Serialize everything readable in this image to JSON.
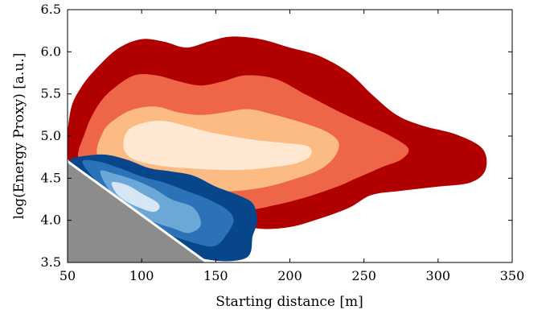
{
  "chart_data": {
    "type": "contour",
    "xlabel": "Starting distance [m]",
    "ylabel": "log(Energy Proxy) [a.u.]",
    "xlim": [
      50,
      350
    ],
    "ylim": [
      3.5,
      6.5
    ],
    "xticks": [
      "50",
      "100",
      "150",
      "200",
      "250",
      "300",
      "350"
    ],
    "yticks": [
      "3.5",
      "4.0",
      "4.5",
      "5.0",
      "5.5",
      "6.0",
      "6.5"
    ],
    "grid": false,
    "legend": "none",
    "series": [
      {
        "colormap": "reds",
        "levels": [
          {
            "color": "#b00000",
            "points": [
              [
                50,
                4.75
              ],
              [
                52,
                5.3
              ],
              [
                60,
                5.6
              ],
              [
                72,
                5.85
              ],
              [
                85,
                6.05
              ],
              [
                100,
                6.15
              ],
              [
                115,
                6.12
              ],
              [
                130,
                6.05
              ],
              [
                145,
                6.12
              ],
              [
                160,
                6.18
              ],
              [
                180,
                6.15
              ],
              [
                200,
                6.05
              ],
              [
                220,
                5.95
              ],
              [
                240,
                5.75
              ],
              [
                255,
                5.5
              ],
              [
                272,
                5.25
              ],
              [
                290,
                5.12
              ],
              [
                312,
                5.02
              ],
              [
                330,
                4.85
              ],
              [
                332,
                4.6
              ],
              [
                322,
                4.45
              ],
              [
                300,
                4.4
              ],
              [
                275,
                4.35
              ],
              [
                255,
                4.3
              ],
              [
                240,
                4.15
              ],
              [
                220,
                4.02
              ],
              [
                200,
                3.92
              ],
              [
                180,
                3.9
              ],
              [
                160,
                3.97
              ],
              [
                140,
                4.05
              ],
              [
                115,
                4.15
              ],
              [
                95,
                4.3
              ],
              [
                75,
                4.5
              ],
              [
                60,
                4.65
              ]
            ]
          },
          {
            "color": "#ef6548",
            "points": [
              [
                58,
                4.7
              ],
              [
                62,
                5.05
              ],
              [
                70,
                5.35
              ],
              [
                80,
                5.55
              ],
              [
                95,
                5.72
              ],
              [
                110,
                5.72
              ],
              [
                125,
                5.65
              ],
              [
                140,
                5.6
              ],
              [
                155,
                5.65
              ],
              [
                170,
                5.72
              ],
              [
                190,
                5.68
              ],
              [
                210,
                5.5
              ],
              [
                232,
                5.3
              ],
              [
                250,
                5.15
              ],
              [
                268,
                5.0
              ],
              [
                280,
                4.85
              ],
              [
                275,
                4.72
              ],
              [
                262,
                4.63
              ],
              [
                245,
                4.5
              ],
              [
                232,
                4.4
              ],
              [
                212,
                4.28
              ],
              [
                190,
                4.18
              ],
              [
                170,
                4.12
              ],
              [
                150,
                4.15
              ],
              [
                130,
                4.25
              ],
              [
                105,
                4.35
              ],
              [
                80,
                4.5
              ]
            ]
          },
          {
            "color": "#fdbb84",
            "points": [
              [
                70,
                4.78
              ],
              [
                74,
                5.05
              ],
              [
                82,
                5.2
              ],
              [
                95,
                5.32
              ],
              [
                110,
                5.35
              ],
              [
                125,
                5.28
              ],
              [
                140,
                5.25
              ],
              [
                155,
                5.28
              ],
              [
                172,
                5.32
              ],
              [
                190,
                5.25
              ],
              [
                210,
                5.15
              ],
              [
                225,
                5.05
              ],
              [
                233,
                4.92
              ],
              [
                230,
                4.75
              ],
              [
                220,
                4.6
              ],
              [
                205,
                4.5
              ],
              [
                185,
                4.4
              ],
              [
                165,
                4.35
              ],
              [
                145,
                4.35
              ],
              [
                125,
                4.4
              ],
              [
                100,
                4.48
              ],
              [
                82,
                4.6
              ]
            ]
          },
          {
            "color": "#fee8d2",
            "points": [
              [
                88,
                4.85
              ],
              [
                90,
                5.05
              ],
              [
                100,
                5.15
              ],
              [
                115,
                5.18
              ],
              [
                130,
                5.12
              ],
              [
                145,
                5.05
              ],
              [
                160,
                5.0
              ],
              [
                178,
                4.95
              ],
              [
                195,
                4.92
              ],
              [
                212,
                4.88
              ],
              [
                214,
                4.77
              ],
              [
                205,
                4.68
              ],
              [
                188,
                4.63
              ],
              [
                170,
                4.6
              ],
              [
                150,
                4.6
              ],
              [
                130,
                4.62
              ],
              [
                112,
                4.65
              ],
              [
                95,
                4.72
              ]
            ]
          }
        ]
      },
      {
        "colormap": "blues",
        "levels": [
          {
            "color": "#08468c",
            "points": [
              [
                52,
                4.72
              ],
              [
                60,
                4.76
              ],
              [
                75,
                4.78
              ],
              [
                90,
                4.72
              ],
              [
                105,
                4.62
              ],
              [
                120,
                4.58
              ],
              [
                135,
                4.53
              ],
              [
                150,
                4.4
              ],
              [
                165,
                4.3
              ],
              [
                175,
                4.2
              ],
              [
                178,
                4.0
              ],
              [
                175,
                3.82
              ],
              [
                170,
                3.55
              ],
              [
                140,
                3.55
              ],
              [
                95,
                3.85
              ],
              [
                72,
                4.3
              ],
              [
                55,
                4.58
              ]
            ]
          },
          {
            "color": "#2b73b6",
            "points": [
              [
                60,
                4.69
              ],
              [
                70,
                4.7
              ],
              [
                85,
                4.62
              ],
              [
                100,
                4.52
              ],
              [
                115,
                4.45
              ],
              [
                130,
                4.35
              ],
              [
                145,
                4.25
              ],
              [
                158,
                4.12
              ],
              [
                162,
                4.0
              ],
              [
                158,
                3.85
              ],
              [
                150,
                3.7
              ],
              [
                138,
                3.72
              ],
              [
                112,
                3.88
              ],
              [
                90,
                4.15
              ],
              [
                72,
                4.42
              ]
            ]
          },
          {
            "color": "#6ba8d8",
            "points": [
              [
                72,
                4.58
              ],
              [
                82,
                4.55
              ],
              [
                95,
                4.48
              ],
              [
                108,
                4.38
              ],
              [
                120,
                4.25
              ],
              [
                135,
                4.15
              ],
              [
                140,
                3.95
              ],
              [
                132,
                3.85
              ],
              [
                122,
                3.9
              ],
              [
                110,
                3.97
              ],
              [
                95,
                4.1
              ],
              [
                80,
                4.32
              ]
            ]
          },
          {
            "color": "#d6e6f5",
            "points": [
              [
                80,
                4.45
              ],
              [
                90,
                4.42
              ],
              [
                100,
                4.32
              ],
              [
                110,
                4.22
              ],
              [
                112,
                4.15
              ],
              [
                108,
                4.1
              ],
              [
                100,
                4.14
              ],
              [
                90,
                4.22
              ],
              [
                83,
                4.32
              ]
            ]
          }
        ]
      }
    ],
    "gray_region": {
      "color": "#8c8c8c",
      "points": [
        [
          50,
          4.7
        ],
        [
          50,
          3.5
        ],
        [
          144,
          3.5
        ]
      ]
    }
  }
}
